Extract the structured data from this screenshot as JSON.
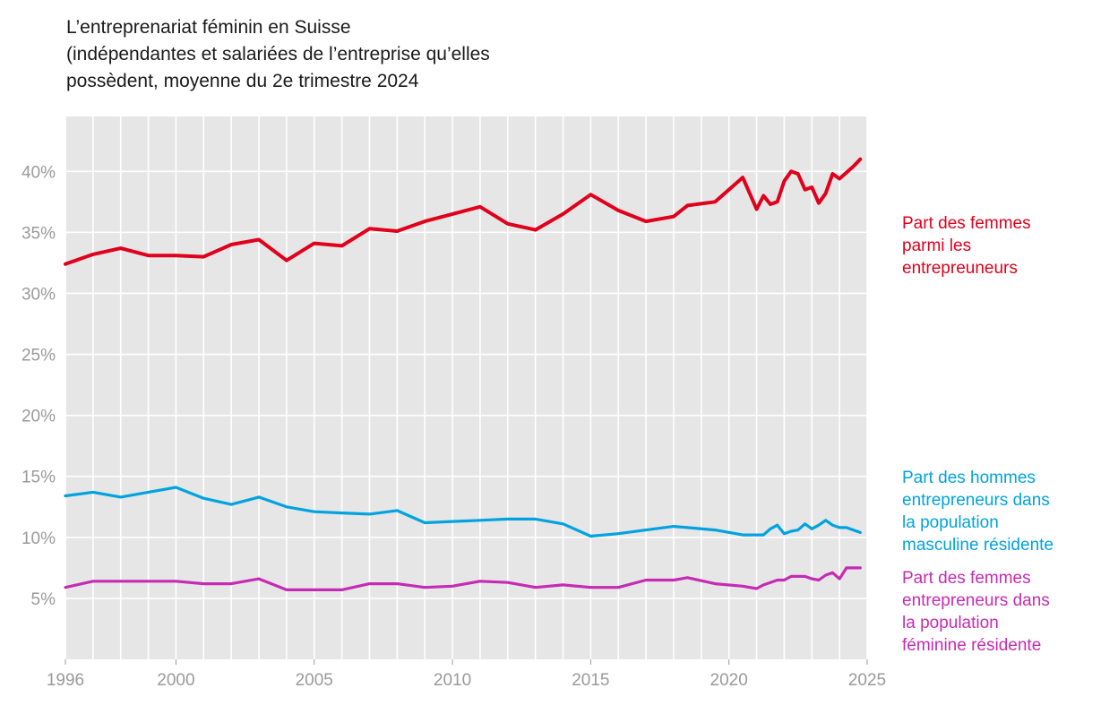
{
  "title_lines": [
    "L’entreprenariat féminin en Suisse",
    "(indépendantes et salariées de l’entreprise qu’elles",
    "possèdent, moyenne du 2e trimestre 2024"
  ],
  "chart_data": {
    "type": "line",
    "title": "L’entreprenariat féminin en Suisse (indépendantes et salariées de l’entreprise qu’elles possèdent, moyenne du 2e trimestre 2024",
    "xlabel": "",
    "ylabel": "",
    "xlim": [
      1996,
      2025
    ],
    "ylim": [
      0,
      44.5
    ],
    "x_ticks": [
      1996,
      2000,
      2005,
      2010,
      2015,
      2020,
      2025
    ],
    "x_tick_labels": [
      "1996",
      "2000",
      "2005",
      "2010",
      "2015",
      "2020",
      "2025"
    ],
    "y_ticks": [
      5,
      10,
      15,
      20,
      25,
      30,
      35,
      40
    ],
    "y_tick_labels": [
      "5%",
      "10%",
      "15%",
      "20%",
      "25%",
      "30%",
      "35%",
      "40%"
    ],
    "grid": true,
    "legend_placement": "right",
    "series": [
      {
        "name": "Part des femmes parmi les entrepreneurs",
        "label_lines": [
          "Part des femmes",
          "parmi les",
          "entrepreuneurs"
        ],
        "color": "#e0001b",
        "x": [
          1996,
          1997,
          1998,
          1999,
          2000,
          2001,
          2002,
          2003,
          2004,
          2005,
          2006,
          2007,
          2008,
          2009,
          2010,
          2011,
          2012,
          2013,
          2014,
          2015,
          2016,
          2017,
          2018,
          2018.5,
          2019.5,
          2020.5,
          2021,
          2021.25,
          2021.5,
          2021.75,
          2022,
          2022.25,
          2022.5,
          2022.75,
          2023,
          2023.25,
          2023.5,
          2023.75,
          2024,
          2024.25,
          2024.5,
          2024.75
        ],
        "values": [
          32.4,
          33.2,
          33.7,
          33.1,
          33.1,
          33.0,
          34.0,
          34.4,
          32.7,
          34.1,
          33.9,
          35.3,
          35.1,
          35.9,
          36.5,
          37.1,
          35.7,
          35.2,
          36.5,
          38.1,
          36.8,
          35.9,
          36.3,
          37.2,
          37.5,
          39.5,
          36.9,
          38.0,
          37.3,
          37.5,
          39.2,
          40.0,
          39.8,
          38.5,
          38.7,
          37.4,
          38.2,
          39.8,
          39.4,
          39.9,
          40.4,
          41.0
        ]
      },
      {
        "name": "Part des hommes entrepreneurs dans la population masculine résidente",
        "label_lines": [
          "Part des hommes",
          "entrepreneurs dans",
          "la population",
          "masculine résidente"
        ],
        "color": "#00a3e0",
        "x": [
          1996,
          1997,
          1998,
          1999,
          2000,
          2001,
          2002,
          2003,
          2004,
          2005,
          2006,
          2007,
          2008,
          2009,
          2010,
          2011,
          2012,
          2013,
          2014,
          2015,
          2016,
          2017,
          2018,
          2018.5,
          2019.5,
          2020.5,
          2021,
          2021.25,
          2021.5,
          2021.75,
          2022,
          2022.25,
          2022.5,
          2022.75,
          2023,
          2023.25,
          2023.5,
          2023.75,
          2024,
          2024.25,
          2024.5,
          2024.75
        ],
        "values": [
          13.4,
          13.7,
          13.3,
          13.7,
          14.1,
          13.2,
          12.7,
          13.3,
          12.5,
          12.1,
          12.0,
          11.9,
          12.2,
          11.2,
          11.3,
          11.4,
          11.5,
          11.5,
          11.1,
          10.1,
          10.3,
          10.6,
          10.9,
          10.8,
          10.6,
          10.2,
          10.2,
          10.2,
          10.7,
          11.0,
          10.3,
          10.5,
          10.6,
          11.1,
          10.7,
          11.0,
          11.4,
          11.0,
          10.8,
          10.8,
          10.6,
          10.4
        ]
      },
      {
        "name": "Part des femmes entrepreneurs dans la population féminine résidente",
        "label_lines": [
          "Part des femmes",
          "entrepreneurs dans",
          "la population",
          "féminine résidente"
        ],
        "color": "#c62bb4",
        "x": [
          1996,
          1997,
          1998,
          1999,
          2000,
          2001,
          2002,
          2003,
          2004,
          2005,
          2006,
          2007,
          2008,
          2009,
          2010,
          2011,
          2012,
          2013,
          2014,
          2015,
          2016,
          2017,
          2018,
          2018.5,
          2019.5,
          2020.5,
          2021,
          2021.25,
          2021.5,
          2021.75,
          2022,
          2022.25,
          2022.5,
          2022.75,
          2023,
          2023.25,
          2023.5,
          2023.75,
          2024,
          2024.25,
          2024.5,
          2024.75
        ],
        "values": [
          5.9,
          6.4,
          6.4,
          6.4,
          6.4,
          6.2,
          6.2,
          6.6,
          5.7,
          5.7,
          5.7,
          6.2,
          6.2,
          5.9,
          6.0,
          6.4,
          6.3,
          5.9,
          6.1,
          5.9,
          5.9,
          6.5,
          6.5,
          6.7,
          6.2,
          6.0,
          5.8,
          6.1,
          6.3,
          6.5,
          6.5,
          6.8,
          6.8,
          6.8,
          6.6,
          6.5,
          6.9,
          7.1,
          6.6,
          7.5,
          7.5,
          7.5
        ]
      }
    ]
  }
}
